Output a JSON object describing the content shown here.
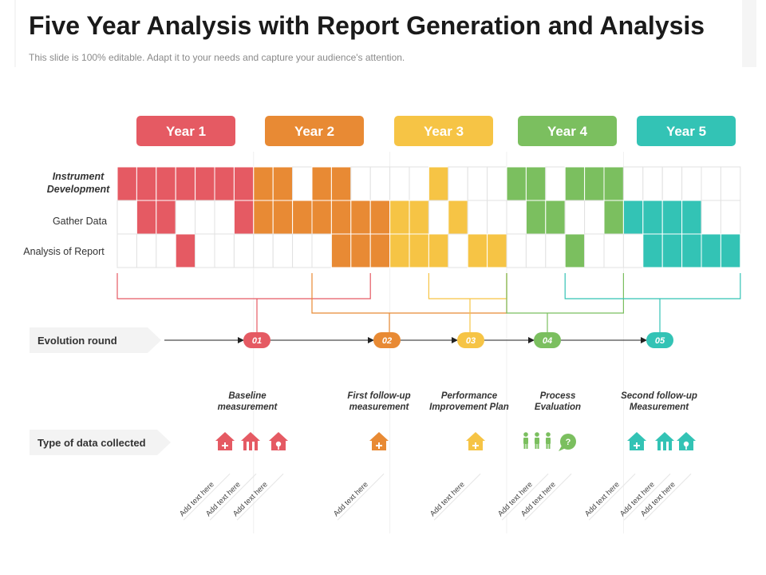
{
  "header": {
    "title": "Five Year Analysis with Report Generation and Analysis",
    "subtitle": "This slide is 100% editable. Adapt it to your needs and capture your audience's attention."
  },
  "colors": {
    "year1": "#e55a63",
    "year2": "#e88a34",
    "year3": "#f6c445",
    "year4": "#7bbf5f",
    "year5": "#33c3b5",
    "grid": "#e2e2e2",
    "arrow": "#222222"
  },
  "chart_data": {
    "type": "table",
    "years": [
      "Year 1",
      "Year 2",
      "Year 3",
      "Year 4",
      "Year 5"
    ],
    "columns_per_year": [
      7,
      7,
      6,
      6,
      6
    ],
    "rows": [
      {
        "label": "Instrument Development",
        "filled": [
          0,
          1,
          2,
          3,
          4,
          5,
          6,
          7,
          8,
          10,
          11,
          16,
          20,
          21,
          23,
          24,
          25
        ]
      },
      {
        "label": "Gather Data",
        "filled": [
          1,
          2,
          6,
          7,
          8,
          9,
          10,
          11,
          12,
          13,
          14,
          15,
          17,
          21,
          22,
          25,
          26,
          27,
          28,
          29
        ]
      },
      {
        "label": "Analysis of Report",
        "filled": [
          3,
          11,
          12,
          13,
          14,
          15,
          16,
          18,
          19,
          23,
          27,
          28,
          29,
          30,
          31
        ]
      }
    ],
    "evolution_round": {
      "label": "Evolution round",
      "rounds": [
        "01",
        "02",
        "03",
        "04",
        "05"
      ]
    },
    "data_collected": {
      "label": "Type of data collected",
      "stages": [
        {
          "title": [
            "Baseline",
            "measurement"
          ],
          "icons": [
            "house-plus-icon",
            "house-split-icon",
            "house-tree-icon"
          ]
        },
        {
          "title": [
            "First follow-up",
            "measurement"
          ],
          "icons": [
            "house-plus-icon"
          ]
        },
        {
          "title": [
            "Performance",
            "Improvement Plan"
          ],
          "icons": [
            "house-plus-icon"
          ]
        },
        {
          "title": [
            "Process",
            "Evaluation"
          ],
          "icons": [
            "person-icon",
            "person-icon",
            "person-icon",
            "question-bubble-icon"
          ]
        },
        {
          "title": [
            "Second follow-up",
            "Measurement"
          ],
          "icons": [
            "house-plus-icon",
            "house-split-icon",
            "house-tree-icon"
          ]
        }
      ],
      "placeholders": [
        "Add text here",
        "Add text here",
        "Add text here",
        "Add text here",
        "Add text here",
        "Add text here",
        "Add text here",
        "Add text here",
        "Add text here",
        "Add text here"
      ]
    }
  }
}
